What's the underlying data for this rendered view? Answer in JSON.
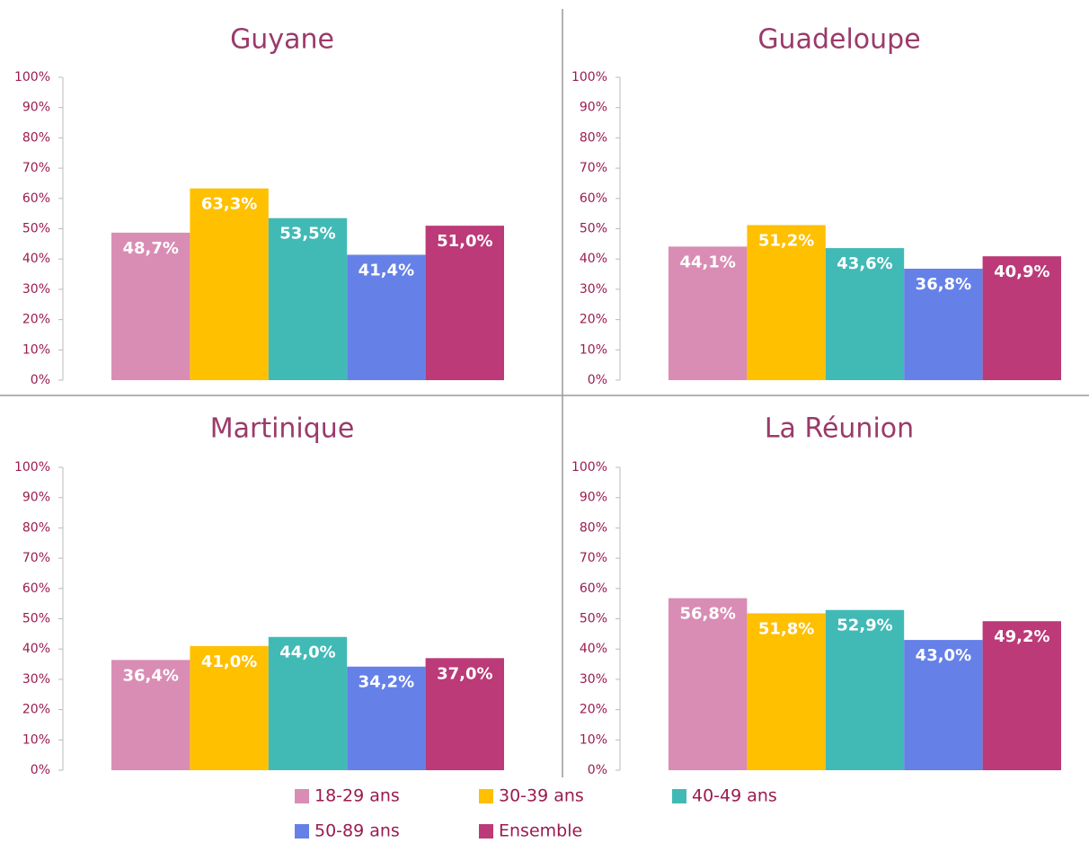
{
  "chart_data": [
    {
      "type": "bar",
      "title": "Guyane",
      "values": [
        48.7,
        63.3,
        53.5,
        41.4,
        51.0
      ],
      "value_labels": [
        "48,7%",
        "63,3%",
        "53,5%",
        "41,4%",
        "51,0%"
      ],
      "ylim": [
        0,
        100
      ],
      "yticks": [
        {
          "value": 0,
          "label": "0%"
        },
        {
          "value": 10,
          "label": "10%"
        },
        {
          "value": 20,
          "label": "20%"
        },
        {
          "value": 30,
          "label": "30%"
        },
        {
          "value": 40,
          "label": "40%"
        },
        {
          "value": 50,
          "label": "50%"
        },
        {
          "value": 60,
          "label": "60%"
        },
        {
          "value": 70,
          "label": "70%"
        },
        {
          "value": 80,
          "label": "80%"
        },
        {
          "value": 90,
          "label": "90%"
        },
        {
          "value": 100,
          "label": "100%"
        }
      ]
    },
    {
      "type": "bar",
      "title": "Guadeloupe",
      "values": [
        44.1,
        51.2,
        43.6,
        36.8,
        40.9
      ],
      "value_labels": [
        "44,1%",
        "51,2%",
        "43,6%",
        "36,8%",
        "40,9%"
      ],
      "ylim": [
        0,
        100
      ],
      "yticks": [
        {
          "value": 0,
          "label": "0%"
        },
        {
          "value": 10,
          "label": "10%"
        },
        {
          "value": 20,
          "label": "20%"
        },
        {
          "value": 30,
          "label": "30%"
        },
        {
          "value": 40,
          "label": "40%"
        },
        {
          "value": 50,
          "label": "50%"
        },
        {
          "value": 60,
          "label": "60%"
        },
        {
          "value": 70,
          "label": "70%"
        },
        {
          "value": 80,
          "label": "80%"
        },
        {
          "value": 90,
          "label": "90%"
        },
        {
          "value": 100,
          "label": "100%"
        }
      ]
    },
    {
      "type": "bar",
      "title": "Martinique",
      "values": [
        36.4,
        41.0,
        44.0,
        34.2,
        37.0
      ],
      "value_labels": [
        "36,4%",
        "41,0%",
        "44,0%",
        "34,2%",
        "37,0%"
      ],
      "ylim": [
        0,
        100
      ],
      "yticks": [
        {
          "value": 0,
          "label": "0%"
        },
        {
          "value": 10,
          "label": "10%"
        },
        {
          "value": 20,
          "label": "20%"
        },
        {
          "value": 30,
          "label": "30%"
        },
        {
          "value": 40,
          "label": "40%"
        },
        {
          "value": 50,
          "label": "50%"
        },
        {
          "value": 60,
          "label": "60%"
        },
        {
          "value": 70,
          "label": "70%"
        },
        {
          "value": 80,
          "label": "80%"
        },
        {
          "value": 90,
          "label": "90%"
        },
        {
          "value": 100,
          "label": "100%"
        }
      ]
    },
    {
      "type": "bar",
      "title": "La Réunion",
      "values": [
        56.8,
        51.8,
        52.9,
        43.0,
        49.2
      ],
      "value_labels": [
        "56,8%",
        "51,8%",
        "52,9%",
        "43,0%",
        "49,2%"
      ],
      "ylim": [
        0,
        100
      ],
      "yticks": [
        {
          "value": 0,
          "label": "0%"
        },
        {
          "value": 10,
          "label": "10%"
        },
        {
          "value": 20,
          "label": "20%"
        },
        {
          "value": 30,
          "label": "30%"
        },
        {
          "value": 40,
          "label": "40%"
        },
        {
          "value": 50,
          "label": "50%"
        },
        {
          "value": 60,
          "label": "60%"
        },
        {
          "value": 70,
          "label": "70%"
        },
        {
          "value": 80,
          "label": "80%"
        },
        {
          "value": 90,
          "label": "90%"
        },
        {
          "value": 100,
          "label": "100%"
        }
      ]
    }
  ],
  "legend": [
    {
      "name": "18-29 ans",
      "color": "#d98db4"
    },
    {
      "name": "30-39 ans",
      "color": "#ffc000"
    },
    {
      "name": "40-49 ans",
      "color": "#41bab6"
    },
    {
      "name": "50-89 ans",
      "color": "#6581e8"
    },
    {
      "name": "Ensemble",
      "color": "#bc3a78"
    }
  ]
}
